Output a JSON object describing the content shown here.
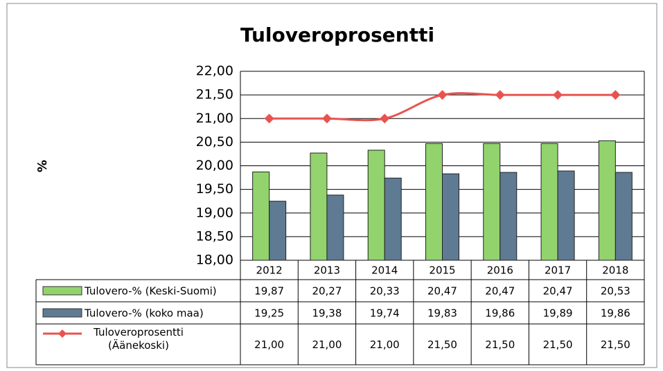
{
  "chart_data": {
    "type": "bar_line_table",
    "title": "Tuloveroprosentti",
    "y_label": "%",
    "categories": [
      "2012",
      "2013",
      "2014",
      "2015",
      "2016",
      "2017",
      "2018"
    ],
    "series": [
      {
        "name": "Tulovero-% (Keski-Suomi)",
        "type": "bar",
        "color": "#92d36e",
        "values": [
          19.87,
          20.27,
          20.33,
          20.47,
          20.47,
          20.47,
          20.53
        ],
        "value_labels": [
          "19,87",
          "20,27",
          "20,33",
          "20,47",
          "20,47",
          "20,47",
          "20,53"
        ]
      },
      {
        "name": "Tulovero-% (koko maa)",
        "type": "bar",
        "color": "#5f7a93",
        "values": [
          19.25,
          19.38,
          19.74,
          19.83,
          19.86,
          19.89,
          19.86
        ],
        "value_labels": [
          "19,25",
          "19,38",
          "19,74",
          "19,83",
          "19,86",
          "19,89",
          "19,86"
        ]
      },
      {
        "name": "Tuloveroprosentti (Äänekoski)",
        "type": "line",
        "color": "#e8534f",
        "values": [
          21.0,
          21.0,
          21.0,
          21.5,
          21.5,
          21.5,
          21.5
        ],
        "value_labels": [
          "21,00",
          "21,00",
          "21,00",
          "21,50",
          "21,50",
          "21,50",
          "21,50"
        ]
      }
    ],
    "ylim": [
      18,
      22
    ],
    "yticks": [
      {
        "value": 18,
        "label": "18,00"
      },
      {
        "value": 18.5,
        "label": "18,50"
      },
      {
        "value": 19,
        "label": "19,00"
      },
      {
        "value": 19.5,
        "label": "19,50"
      },
      {
        "value": 20,
        "label": "20,00"
      },
      {
        "value": 20.5,
        "label": "20,50"
      },
      {
        "value": 21,
        "label": "21,00"
      },
      {
        "value": 21.5,
        "label": "21,50"
      },
      {
        "value": 22,
        "label": "22,00"
      }
    ],
    "grid": true
  }
}
